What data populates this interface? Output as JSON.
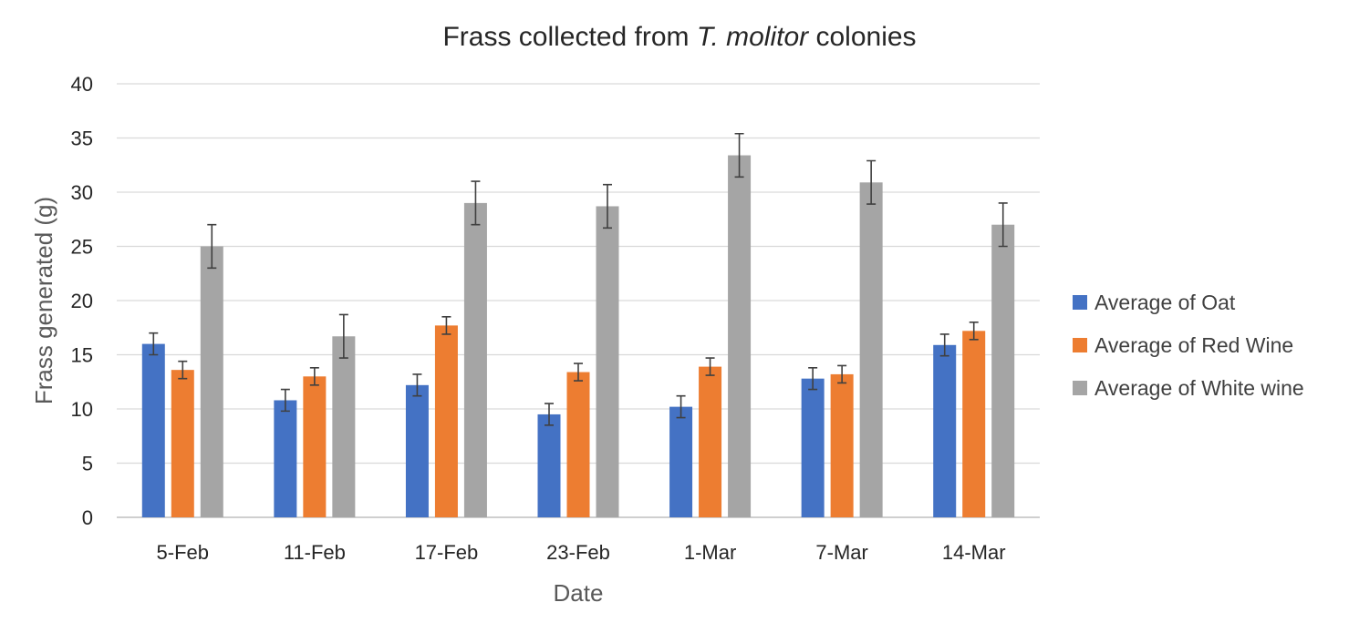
{
  "chart_data": {
    "type": "bar",
    "title": {
      "prefix": "Frass collected from ",
      "italic": "T. molitor",
      "suffix": " colonies"
    },
    "xlabel": "Date",
    "ylabel": "Frass generated (g)",
    "ylim": [
      0,
      40
    ],
    "yticks": [
      0,
      5,
      10,
      15,
      20,
      25,
      30,
      35,
      40
    ],
    "grid": true,
    "legend_position": "right",
    "error_bars": true,
    "categories": [
      "5-Feb",
      "11-Feb",
      "17-Feb",
      "23-Feb",
      "1-Mar",
      "7-Mar",
      "14-Mar"
    ],
    "series": [
      {
        "name": "Average of Oat",
        "color": "#4472c4",
        "values": [
          16.0,
          10.8,
          12.2,
          9.5,
          10.2,
          12.8,
          15.9
        ],
        "errors": [
          1.0,
          1.0,
          1.0,
          1.0,
          1.0,
          1.0,
          1.0
        ]
      },
      {
        "name": "Average of Red Wine",
        "color": "#ed7d31",
        "values": [
          13.6,
          13.0,
          17.7,
          13.4,
          13.9,
          13.2,
          17.2
        ],
        "errors": [
          0.8,
          0.8,
          0.8,
          0.8,
          0.8,
          0.8,
          0.8
        ]
      },
      {
        "name": "Average of White wine",
        "color": "#a5a5a5",
        "values": [
          25.0,
          16.7,
          29.0,
          28.7,
          33.4,
          30.9,
          27.0
        ],
        "errors": [
          2.0,
          2.0,
          2.0,
          2.0,
          2.0,
          2.0,
          2.0
        ]
      }
    ]
  }
}
